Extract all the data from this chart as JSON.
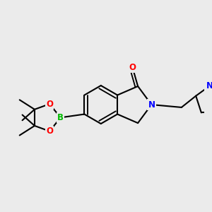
{
  "bg_color": "#ebebeb",
  "bond_color": "#000000",
  "bond_width": 1.5,
  "atom_colors": {
    "O": "#ff0000",
    "N": "#0000ff",
    "B": "#00bb00",
    "C": "#000000"
  },
  "font_size_atom": 8.5,
  "scale": 1.0
}
